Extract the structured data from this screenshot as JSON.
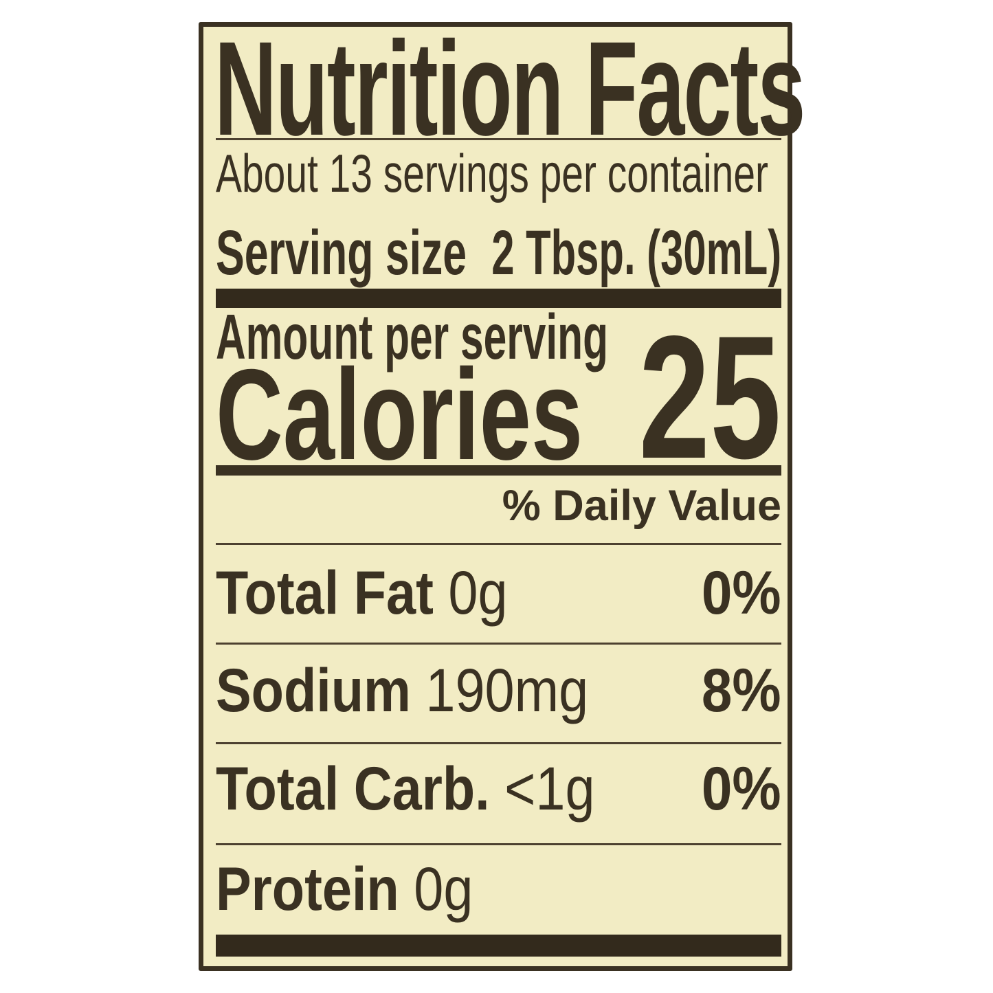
{
  "label": {
    "title": "Nutrition Facts",
    "servings_per_container": "About 13 servings per container",
    "serving_size": {
      "label": "Serving size",
      "value": "2 Tbsp. (30mL)"
    },
    "amount_per_serving": "Amount per serving",
    "calories": {
      "label": "Calories",
      "value": "25"
    },
    "daily_value_header": "% Daily Value",
    "rows": [
      {
        "name": "Total Fat",
        "amount": "0g",
        "dv": "0%"
      },
      {
        "name": "Sodium",
        "amount": "190mg",
        "dv": "8%"
      },
      {
        "name": "Total Carb.",
        "amount": "<1g",
        "dv": "0%"
      },
      {
        "name": "Protein",
        "amount": "0g",
        "dv": ""
      }
    ],
    "colors": {
      "page_background": "#ffffff",
      "label_background": "#f2ecc4",
      "ink": "#3a3122",
      "thick_bar": "#332a1c",
      "thin_rule": "#4d4130"
    }
  }
}
